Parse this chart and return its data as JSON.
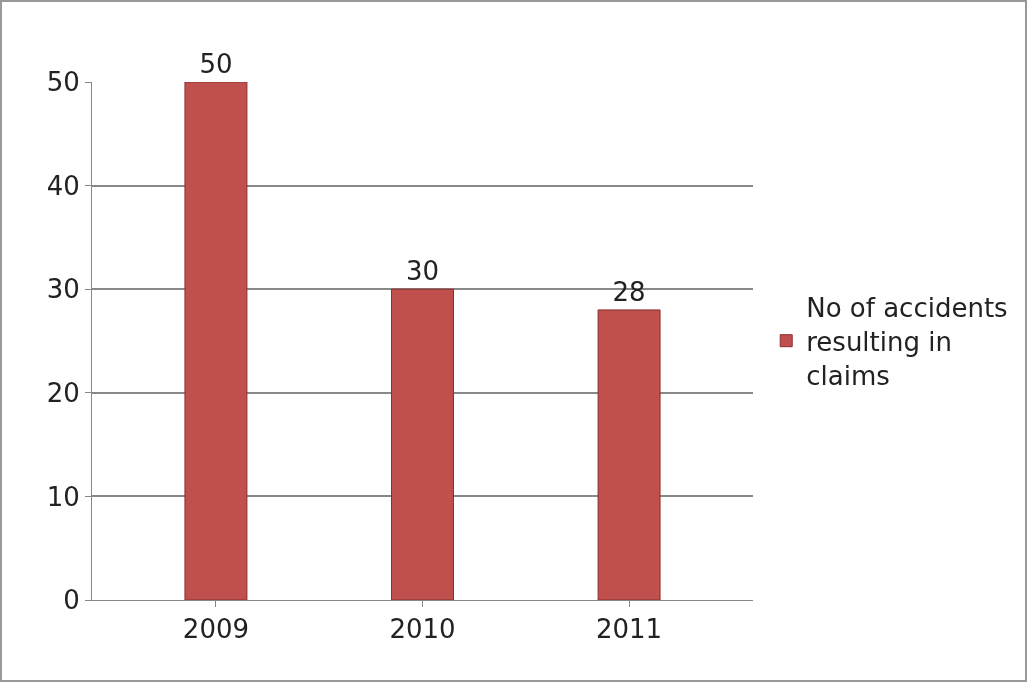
{
  "chart_data": {
    "type": "bar",
    "categories": [
      "2009",
      "2010",
      "2011"
    ],
    "series": [
      {
        "name": "No of accidents resulting in claims",
        "color": "#c0504d",
        "values": [
          50,
          30,
          28
        ]
      }
    ],
    "ylim": [
      0,
      50
    ],
    "yticks": [
      0,
      10,
      20,
      30,
      40,
      50
    ],
    "grid": "y",
    "legend": "right",
    "data_labels": true
  }
}
